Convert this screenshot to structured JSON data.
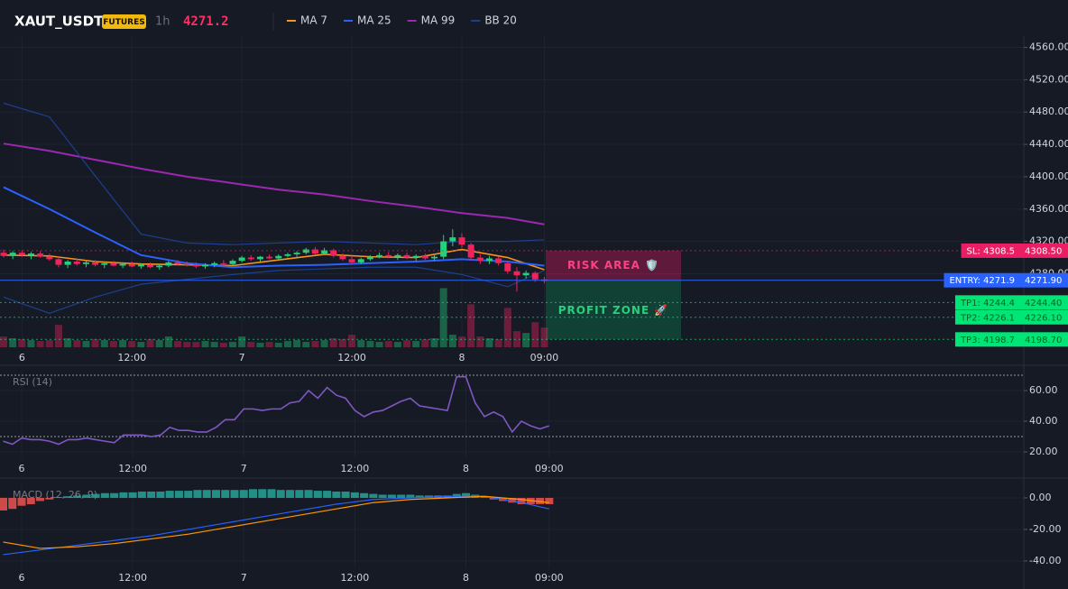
{
  "header": {
    "symbol": "XAUT_USDT",
    "badge": "FUTURES",
    "interval": "1h",
    "price": "4271.2"
  },
  "chart_data": [
    {
      "type": "candlestick",
      "categories": [
        null,
        null,
        "6",
        null,
        null,
        null,
        null,
        null,
        null,
        null,
        null,
        null,
        null,
        null,
        "12:00",
        null,
        null,
        null,
        null,
        null,
        null,
        null,
        null,
        null,
        null,
        null,
        "7",
        null,
        null,
        null,
        null,
        null,
        null,
        null,
        null,
        null,
        null,
        null,
        "12:00",
        null,
        null,
        null,
        null,
        null,
        null,
        null,
        null,
        null,
        null,
        null,
        "8",
        null,
        null,
        null,
        null,
        null,
        null,
        null,
        null,
        "09:00"
      ],
      "open": [
        4306,
        4302,
        4306,
        4303,
        4305,
        4301,
        4298,
        4291,
        4295,
        4292,
        4294,
        4291,
        4293,
        4290,
        4292,
        4289,
        4291,
        4288,
        4290,
        4294,
        4292,
        4291,
        4289,
        4291,
        4293,
        4292,
        4296,
        4300,
        4298,
        4301,
        4299,
        4302,
        4304,
        4306,
        4310,
        4305,
        4309,
        4302,
        4298,
        4294,
        4298,
        4301,
        4303,
        4301,
        4303,
        4300,
        4302,
        4299,
        4301,
        4320,
        4325,
        4316,
        4300,
        4296,
        4299,
        4293,
        4283,
        4278,
        4281,
        4273
      ],
      "high": [
        4310,
        4308,
        4309,
        4307,
        4308,
        4305,
        4301,
        4297,
        4299,
        4296,
        4297,
        4295,
        4296,
        4294,
        4295,
        4293,
        4294,
        4292,
        4296,
        4297,
        4295,
        4294,
        4293,
        4295,
        4297,
        4298,
        4302,
        4303,
        4302,
        4304,
        4304,
        4306,
        4308,
        4312,
        4313,
        4312,
        4311,
        4305,
        4302,
        4300,
        4303,
        4306,
        4307,
        4305,
        4306,
        4304,
        4305,
        4304,
        4328,
        4335,
        4330,
        4318,
        4304,
        4302,
        4301,
        4296,
        4288,
        4284,
        4283,
        4276
      ],
      "low": [
        4300,
        4298,
        4301,
        4298,
        4300,
        4296,
        4288,
        4287,
        4290,
        4288,
        4289,
        4287,
        4289,
        4287,
        4288,
        4286,
        4287,
        4285,
        4288,
        4290,
        4289,
        4287,
        4286,
        4288,
        4290,
        4290,
        4294,
        4296,
        4295,
        4298,
        4297,
        4300,
        4301,
        4304,
        4303,
        4303,
        4300,
        4296,
        4292,
        4292,
        4296,
        4299,
        4299,
        4297,
        4298,
        4296,
        4297,
        4296,
        4298,
        4314,
        4312,
        4296,
        4292,
        4292,
        4290,
        4280,
        4258,
        4274,
        4270,
        4268
      ],
      "close": [
        4302,
        4306,
        4303,
        4305,
        4301,
        4298,
        4291,
        4295,
        4292,
        4294,
        4291,
        4293,
        4290,
        4292,
        4289,
        4291,
        4288,
        4290,
        4294,
        4292,
        4291,
        4289,
        4291,
        4293,
        4292,
        4296,
        4300,
        4298,
        4301,
        4299,
        4302,
        4304,
        4306,
        4310,
        4305,
        4309,
        4302,
        4298,
        4294,
        4298,
        4301,
        4303,
        4301,
        4303,
        4300,
        4302,
        4299,
        4301,
        4320,
        4325,
        4316,
        4300,
        4296,
        4299,
        4293,
        4283,
        4278,
        4281,
        4273,
        4271
      ],
      "volume": [
        12,
        10,
        9,
        8,
        7,
        8,
        25,
        10,
        8,
        7,
        9,
        8,
        7,
        8,
        7,
        6,
        9,
        8,
        12,
        7,
        6,
        6,
        7,
        6,
        5,
        6,
        12,
        6,
        5,
        6,
        5,
        7,
        8,
        6,
        7,
        8,
        10,
        9,
        14,
        8,
        7,
        6,
        7,
        6,
        8,
        7,
        9,
        10,
        66,
        14,
        12,
        48,
        12,
        10,
        9,
        44,
        18,
        16,
        28,
        22
      ],
      "up_color": "#26d07c",
      "down_color": "#f0245c",
      "series": [
        {
          "name": "MA 7",
          "color": "#f7931a",
          "x": [
            0,
            5,
            10,
            15,
            20,
            25,
            30,
            35,
            40,
            45,
            50,
            55,
            59
          ],
          "values": [
            4303,
            4302,
            4295,
            4292,
            4291,
            4290,
            4297,
            4304,
            4301,
            4300,
            4310,
            4300,
            4285
          ]
        },
        {
          "name": "MA 25",
          "color": "#2962ff",
          "x": [
            0,
            5,
            10,
            15,
            20,
            25,
            30,
            35,
            40,
            45,
            50,
            55,
            59
          ],
          "values": [
            4387,
            4360,
            4331,
            4303,
            4293,
            4288,
            4290,
            4291,
            4293,
            4295,
            4298,
            4295,
            4290
          ]
        },
        {
          "name": "MA 99",
          "color": "#9c27b0",
          "x": [
            0,
            5,
            10,
            15,
            20,
            25,
            30,
            35,
            40,
            45,
            50,
            55,
            59
          ],
          "values": [
            4441,
            4432,
            4421,
            4410,
            4400,
            4392,
            4384,
            4378,
            4370,
            4363,
            4355,
            4349,
            4341
          ]
        },
        {
          "name": "BB 20",
          "color": "#1e3f8f",
          "x": [
            0,
            5,
            10,
            15,
            20,
            25,
            30,
            35,
            40,
            45,
            50,
            55,
            59
          ],
          "upper": [
            4491,
            4474,
            4401,
            4329,
            4318,
            4316,
            4318,
            4320,
            4318,
            4316,
            4320,
            4320,
            4322
          ],
          "lower": [
            4251,
            4231,
            4251,
            4267,
            4273,
            4279,
            4284,
            4286,
            4288,
            4288,
            4279,
            4264,
            4284
          ]
        }
      ],
      "ylim": [
        4189,
        4574
      ],
      "yticks": [
        {
          "value": 4280,
          "label": "4280.00"
        },
        {
          "value": 4320,
          "label": "4320.00"
        },
        {
          "value": 4360,
          "label": "4360.00"
        },
        {
          "value": 4400,
          "label": "4400.00"
        },
        {
          "value": 4440,
          "label": "4440.00"
        },
        {
          "value": 4480,
          "label": "4480.00"
        },
        {
          "value": 4520,
          "label": "4520.00"
        },
        {
          "value": 4560,
          "label": "4560.00"
        }
      ],
      "levels": [
        {
          "label": "SL: 4308.5",
          "value": 4308.5,
          "value_label": "4308.50",
          "color": "#e91e63"
        },
        {
          "label": "ENTRY: 4271.9",
          "value": 4271.9,
          "value_label": "4271.90",
          "color": "#2962ff"
        },
        {
          "label": "TP1: 4244.4",
          "value": 4244.4,
          "value_label": "4244.40",
          "color": "#00e676"
        },
        {
          "label": "TP2: 4226.1",
          "value": 4226.1,
          "value_label": "4226.10",
          "color": "#00e676"
        },
        {
          "label": "TP3: 4198.7",
          "value": 4198.7,
          "value_label": "4198.70",
          "color": "#00e676"
        }
      ],
      "zones": [
        "RISK AREA 🛡️",
        "PROFIT ZONE 🚀"
      ]
    },
    {
      "type": "line",
      "title": "RSI (14)",
      "color": "#7e57c2",
      "categories": [
        null,
        null,
        "6",
        null,
        null,
        null,
        null,
        null,
        null,
        null,
        null,
        null,
        null,
        null,
        "12:00",
        null,
        null,
        null,
        null,
        null,
        null,
        null,
        null,
        null,
        null,
        null,
        "7",
        null,
        null,
        null,
        null,
        null,
        null,
        null,
        null,
        null,
        null,
        null,
        "12:00",
        null,
        null,
        null,
        null,
        null,
        null,
        null,
        null,
        null,
        null,
        null,
        "8",
        null,
        null,
        null,
        null,
        null,
        null,
        null,
        null,
        "09:00"
      ],
      "values": [
        27,
        25,
        29,
        28,
        28,
        27,
        25,
        28,
        28,
        29,
        28,
        27,
        26,
        31,
        31,
        31,
        30,
        31,
        36,
        34,
        34,
        33,
        33,
        36,
        41,
        41,
        48,
        48,
        47,
        48,
        48,
        52,
        53,
        60,
        55,
        62,
        57,
        55,
        47,
        43,
        46,
        47,
        50,
        53,
        55,
        50,
        49,
        48,
        47,
        69,
        69,
        52,
        43,
        46,
        43,
        33,
        40,
        37,
        35,
        37
      ],
      "bands": [
        70,
        30
      ],
      "ylim": [
        15.9,
        73.5
      ],
      "yticks": [
        {
          "value": 20,
          "label": "20.00"
        },
        {
          "value": 40,
          "label": "40.00"
        },
        {
          "value": 60,
          "label": "60.00"
        }
      ]
    },
    {
      "type": "macd",
      "title": "MACD (12, 26, 9)",
      "categories": [
        null,
        null,
        "6",
        null,
        null,
        null,
        null,
        null,
        null,
        null,
        null,
        null,
        null,
        null,
        "12:00",
        null,
        null,
        null,
        null,
        null,
        null,
        null,
        null,
        null,
        null,
        null,
        "7",
        null,
        null,
        null,
        null,
        null,
        null,
        null,
        null,
        null,
        null,
        null,
        "12:00",
        null,
        null,
        null,
        null,
        null,
        null,
        null,
        null,
        null,
        null,
        null,
        "8",
        null,
        null,
        null,
        null,
        null,
        null,
        null,
        null,
        "09:00"
      ],
      "histogram": [
        -8,
        -7,
        -5,
        -4,
        -2,
        -1,
        0.5,
        1,
        1.5,
        2,
        2.5,
        3,
        3,
        3.5,
        3.5,
        4,
        4,
        4,
        4.5,
        4.5,
        4.5,
        5,
        5,
        5,
        5,
        5,
        5,
        5.5,
        5.5,
        5.5,
        5,
        5,
        5,
        5,
        4.5,
        4.5,
        4,
        4,
        3.5,
        3,
        2.5,
        2,
        2,
        2,
        2,
        1.5,
        1.5,
        1.5,
        1.5,
        2.5,
        3,
        2,
        1,
        -1,
        -2,
        -3,
        -4,
        -4,
        -4,
        -4
      ],
      "up_color": "#26a69a",
      "down_color": "#ef5350",
      "lines": [
        {
          "color": "#2962ff",
          "x": [
            0,
            4,
            8,
            12,
            16,
            20,
            24,
            28,
            32,
            36,
            40,
            44,
            48,
            52,
            56,
            59
          ],
          "values": [
            -36,
            -33,
            -30,
            -27,
            -24,
            -20,
            -16,
            -12,
            -8,
            -4,
            -1,
            0,
            1,
            1,
            -3,
            -7
          ]
        },
        {
          "color": "#ff9800",
          "x": [
            0,
            4,
            8,
            12,
            16,
            20,
            24,
            28,
            32,
            36,
            40,
            44,
            48,
            52,
            56,
            59
          ],
          "values": [
            -28,
            -32,
            -31,
            -29,
            -26,
            -23,
            -19,
            -15,
            -11,
            -7,
            -3,
            -1,
            0,
            1,
            -1,
            -3
          ]
        }
      ],
      "ylim": [
        -44.6,
        9.7
      ],
      "yticks": [
        {
          "value": -40,
          "label": "-40.00"
        },
        {
          "value": -20,
          "label": "-20.00"
        },
        {
          "value": 0,
          "label": "0.00"
        }
      ]
    }
  ]
}
